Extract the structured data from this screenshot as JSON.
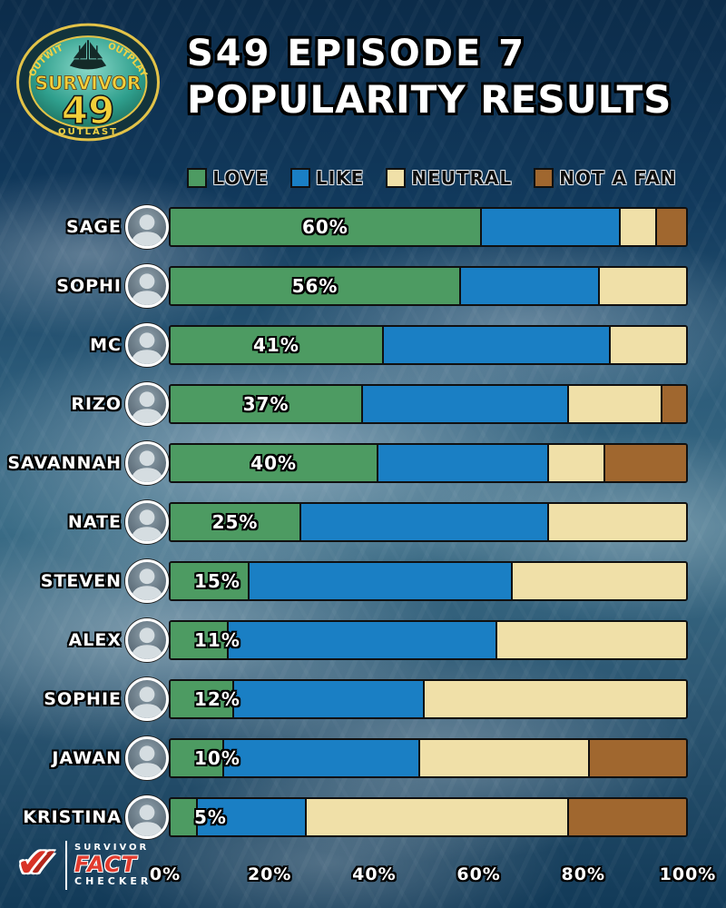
{
  "logo": {
    "outwit": "OUTWIT",
    "outplay": "OUTPLAY",
    "outlast": "OUTLAST",
    "survivor": "SURVIVOR",
    "season": "49"
  },
  "header": {
    "line1": "S49 EPISODE 7",
    "line2": "POPULARITY RESULTS"
  },
  "legend": {
    "items": [
      {
        "label": "LOVE",
        "color": "#4d9b62"
      },
      {
        "label": "LIKE",
        "color": "#1a7fc4"
      },
      {
        "label": "NEUTRAL",
        "color": "#f0e0a8"
      },
      {
        "label": "NOT A FAN",
        "color": "#a0672f"
      }
    ]
  },
  "chart_data": {
    "type": "bar",
    "orientation": "horizontal",
    "stacked": true,
    "unit": "%",
    "xlim": [
      0,
      100
    ],
    "x_ticks": [
      "0%",
      "20%",
      "40%",
      "60%",
      "80%",
      "100%"
    ],
    "categories": [
      "SAGE",
      "SOPHI",
      "MC",
      "RIZO",
      "SAVANNAH",
      "NATE",
      "STEVEN",
      "ALEX",
      "SOPHIE",
      "JAWAN",
      "KRISTINA"
    ],
    "series": [
      {
        "name": "LOVE",
        "color": "#4d9b62",
        "values": [
          60,
          56,
          41,
          37,
          40,
          25,
          15,
          11,
          12,
          10,
          5
        ]
      },
      {
        "name": "LIKE",
        "color": "#1a7fc4",
        "values": [
          27,
          27,
          44,
          40,
          33,
          48,
          51,
          52,
          37,
          38,
          21
        ]
      },
      {
        "name": "NEUTRAL",
        "color": "#f0e0a8",
        "values": [
          7,
          17,
          15,
          18,
          11,
          27,
          34,
          37,
          51,
          33,
          51
        ]
      },
      {
        "name": "NOT A FAN",
        "color": "#a0672f",
        "values": [
          6,
          0,
          0,
          5,
          16,
          0,
          0,
          0,
          0,
          19,
          23
        ]
      }
    ],
    "bar_labels": [
      "60%",
      "56%",
      "41%",
      "37%",
      "40%",
      "25%",
      "15%",
      "11%",
      "12%",
      "10%",
      "5%"
    ],
    "legend_position": "top",
    "grid": false
  },
  "footer": {
    "brand_top": "SURVIVOR",
    "brand_mid": "FACT",
    "brand_bottom": "CHECKER"
  }
}
